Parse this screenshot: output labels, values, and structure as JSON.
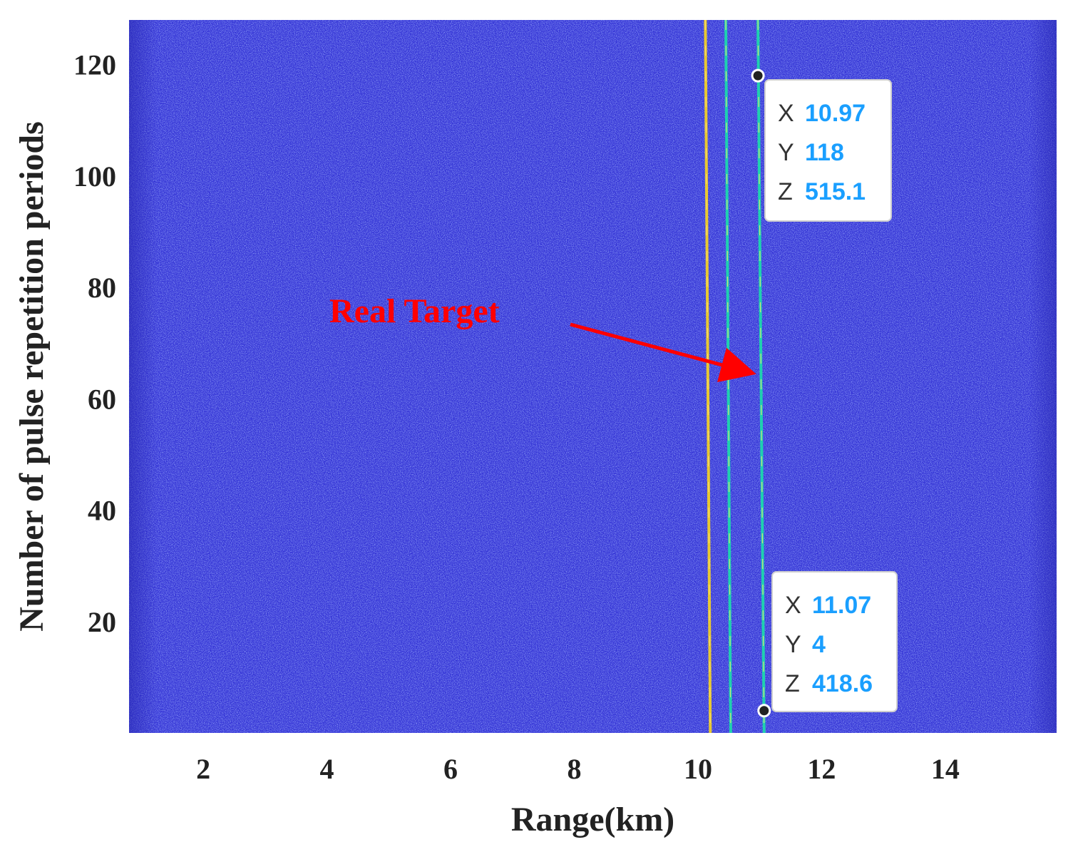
{
  "chart_data": {
    "type": "heatmap",
    "title": "",
    "xlabel": "Range(km)",
    "ylabel": "Number of pulse repetition periods",
    "xlim": [
      0.8,
      15.8
    ],
    "ylim": [
      0,
      128
    ],
    "xticks": [
      2,
      4,
      6,
      8,
      10,
      12,
      14
    ],
    "yticks": [
      20,
      40,
      60,
      80,
      100,
      120
    ],
    "grid": false,
    "colors": {
      "background": "#3535d6",
      "noise": "#4a5ae8",
      "yellow_track": "#e8c832",
      "cyan_track": "#1fd0b0",
      "annotation": "#ff0000",
      "datatip_value": "#1a9fff"
    },
    "tracks": [
      {
        "color": "yellow",
        "x_top": 10.12,
        "x_bottom": 10.2
      },
      {
        "color": "cyan",
        "x_top": 10.45,
        "x_bottom": 10.53
      },
      {
        "color": "cyan",
        "x_top": 10.97,
        "x_bottom": 11.07
      }
    ],
    "datatips": [
      {
        "x_label": "X",
        "x": "10.97",
        "y_label": "Y",
        "y": "118",
        "z_label": "Z",
        "z": "515.1"
      },
      {
        "x_label": "X",
        "x": "11.07",
        "y_label": "Y",
        "y": "4",
        "z_label": "Z",
        "z": "418.6"
      }
    ],
    "annotation": {
      "text": "Real Target",
      "arrow_to": {
        "x": 10.97,
        "y": 65
      }
    }
  }
}
